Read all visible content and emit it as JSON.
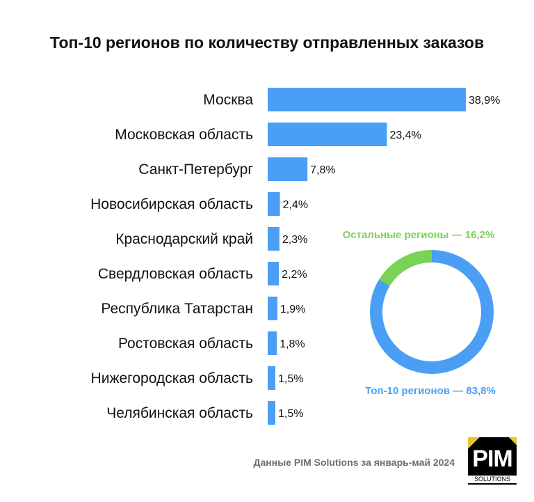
{
  "title": "Топ-10 регионов по количеству отправленных заказов",
  "footer": "Данные PIM Solutions за январь-май 2024",
  "logo": {
    "main": "PIM",
    "sub": "SOLUTIONS"
  },
  "colors": {
    "bar": "#4a9ff5",
    "pie_top10": "#4a9ff5",
    "pie_others": "#79d356",
    "text": "#111111",
    "footer": "#6e6e6e"
  },
  "chart_data": [
    {
      "type": "bar",
      "orientation": "horizontal",
      "categories": [
        "Москва",
        "Московская область",
        "Санкт-Петербург",
        "Новосибирская область",
        "Краснодарский край",
        "Свердловская область",
        "Республика Татарстан",
        "Ростовская область",
        "Нижегородская область",
        "Челябинская область"
      ],
      "values": [
        38.9,
        23.4,
        7.8,
        2.4,
        2.3,
        2.2,
        1.9,
        1.8,
        1.5,
        1.5
      ],
      "value_labels": [
        "38,9%",
        "23,4%",
        "7,8%",
        "2,4%",
        "2,3%",
        "2,2%",
        "1,9%",
        "1,8%",
        "1,5%",
        "1,5%"
      ],
      "unit": "%",
      "xlim": [
        0,
        40
      ]
    },
    {
      "type": "pie",
      "donut": true,
      "slices": [
        {
          "label": "Топ-10 регионов — 83,8%",
          "value": 83.8,
          "color": "#4a9ff5"
        },
        {
          "label": "Остальные регионы — 16,2%",
          "value": 16.2,
          "color": "#79d356"
        }
      ]
    }
  ]
}
